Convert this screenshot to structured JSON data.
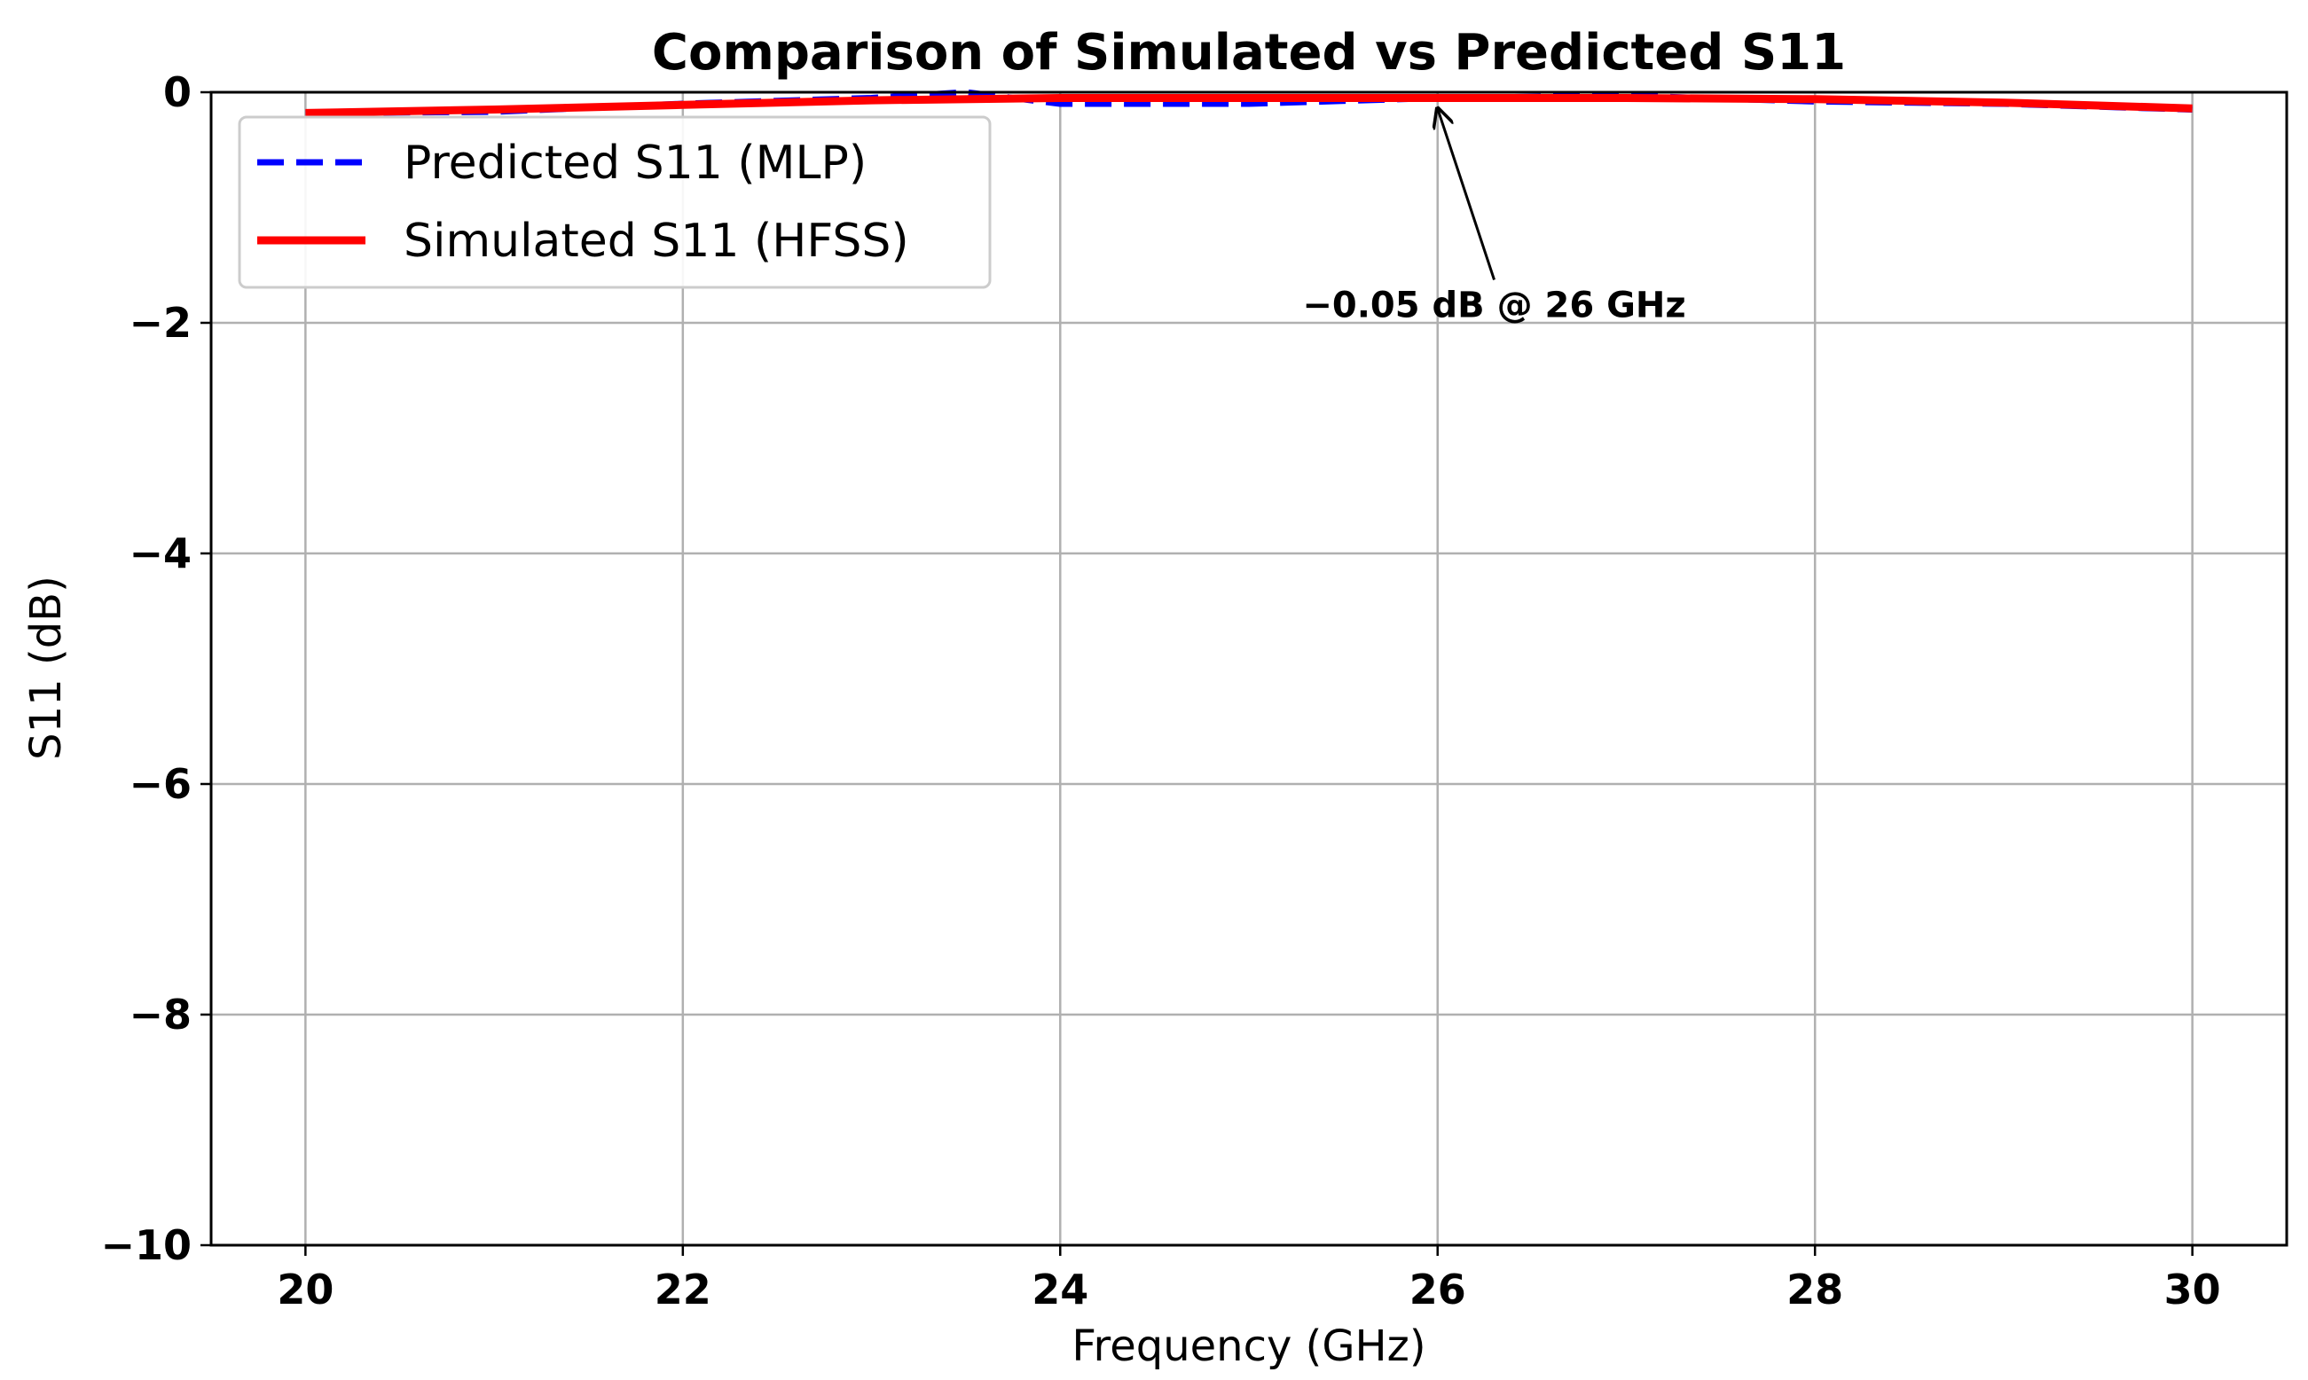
{
  "chart_data": {
    "type": "line",
    "title": "Comparison of Simulated vs Predicted S11",
    "xlabel": "Frequency (GHz)",
    "ylabel": "S11 (dB)",
    "xlim": [
      19.5,
      30.5
    ],
    "ylim": [
      -10,
      0
    ],
    "xticks": [
      20,
      22,
      24,
      26,
      28,
      30
    ],
    "yticks": [
      0,
      -2,
      -4,
      -6,
      -8,
      -10
    ],
    "xtick_labels": [
      "20",
      "22",
      "24",
      "26",
      "28",
      "30"
    ],
    "ytick_labels": [
      "0",
      "−2",
      "−4",
      "−6",
      "−8",
      "−10"
    ],
    "grid": true,
    "legend_position": "top-left",
    "series": [
      {
        "name": "Predicted S11 (MLP)",
        "color": "#0000ff",
        "style": "dashed",
        "x": [
          20,
          21,
          22,
          23,
          23.5,
          24,
          25,
          26,
          27,
          28,
          29,
          30
        ],
        "y": [
          -0.18,
          -0.17,
          -0.1,
          -0.05,
          0.0,
          -0.1,
          -0.1,
          -0.05,
          -0.03,
          -0.08,
          -0.1,
          -0.15
        ]
      },
      {
        "name": "Simulated S11 (HFSS)",
        "color": "#ff0000",
        "style": "solid",
        "x": [
          20,
          21,
          22,
          23,
          24,
          25,
          26,
          27,
          28,
          29,
          30
        ],
        "y": [
          -0.18,
          -0.15,
          -0.11,
          -0.07,
          -0.05,
          -0.05,
          -0.05,
          -0.05,
          -0.06,
          -0.09,
          -0.14
        ]
      }
    ],
    "annotations": [
      {
        "text": "−0.05 dB @ 26 GHz",
        "x": 26,
        "y": -0.05,
        "text_x": 26.3,
        "text_y": -1.95
      }
    ]
  }
}
